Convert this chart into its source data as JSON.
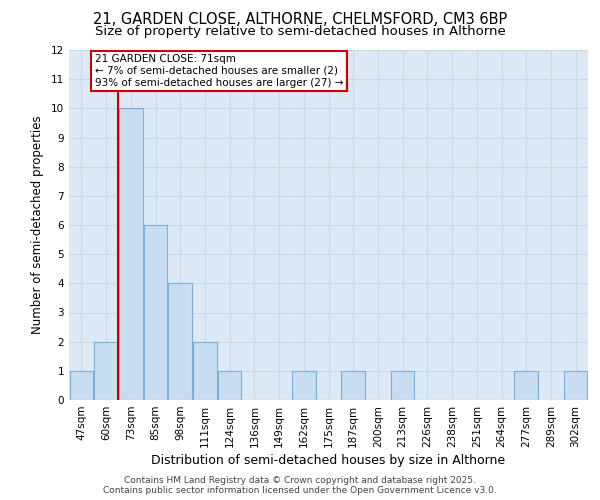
{
  "title1": "21, GARDEN CLOSE, ALTHORNE, CHELMSFORD, CM3 6BP",
  "title2": "Size of property relative to semi-detached houses in Althorne",
  "xlabel": "Distribution of semi-detached houses by size in Althorne",
  "ylabel": "Number of semi-detached properties",
  "categories": [
    "47sqm",
    "60sqm",
    "73sqm",
    "85sqm",
    "98sqm",
    "111sqm",
    "124sqm",
    "136sqm",
    "149sqm",
    "162sqm",
    "175sqm",
    "187sqm",
    "200sqm",
    "213sqm",
    "226sqm",
    "238sqm",
    "251sqm",
    "264sqm",
    "277sqm",
    "289sqm",
    "302sqm"
  ],
  "values": [
    1,
    2,
    10,
    6,
    4,
    2,
    1,
    0,
    0,
    1,
    0,
    1,
    0,
    1,
    0,
    0,
    0,
    0,
    1,
    0,
    1
  ],
  "bar_color": "#c9ddf0",
  "bar_edge_color": "#7bafd4",
  "red_line_x": 1.5,
  "annotation_text": "21 GARDEN CLOSE: 71sqm\n← 7% of semi-detached houses are smaller (2)\n93% of semi-detached houses are larger (27) →",
  "annotation_box_facecolor": "#ffffff",
  "annotation_box_edgecolor": "#cc0000",
  "red_line_color": "#cc0000",
  "ylim": [
    0,
    12
  ],
  "yticks": [
    0,
    1,
    2,
    3,
    4,
    5,
    6,
    7,
    8,
    9,
    10,
    11,
    12
  ],
  "grid_color": "#c8d8e8",
  "background_color": "#ddeaf6",
  "footer1": "Contains HM Land Registry data © Crown copyright and database right 2025.",
  "footer2": "Contains public sector information licensed under the Open Government Licence v3.0.",
  "title1_fontsize": 10.5,
  "title2_fontsize": 9.5,
  "xlabel_fontsize": 9,
  "ylabel_fontsize": 8.5,
  "tick_fontsize": 7.5,
  "annotation_fontsize": 7.5,
  "footer_fontsize": 6.5
}
